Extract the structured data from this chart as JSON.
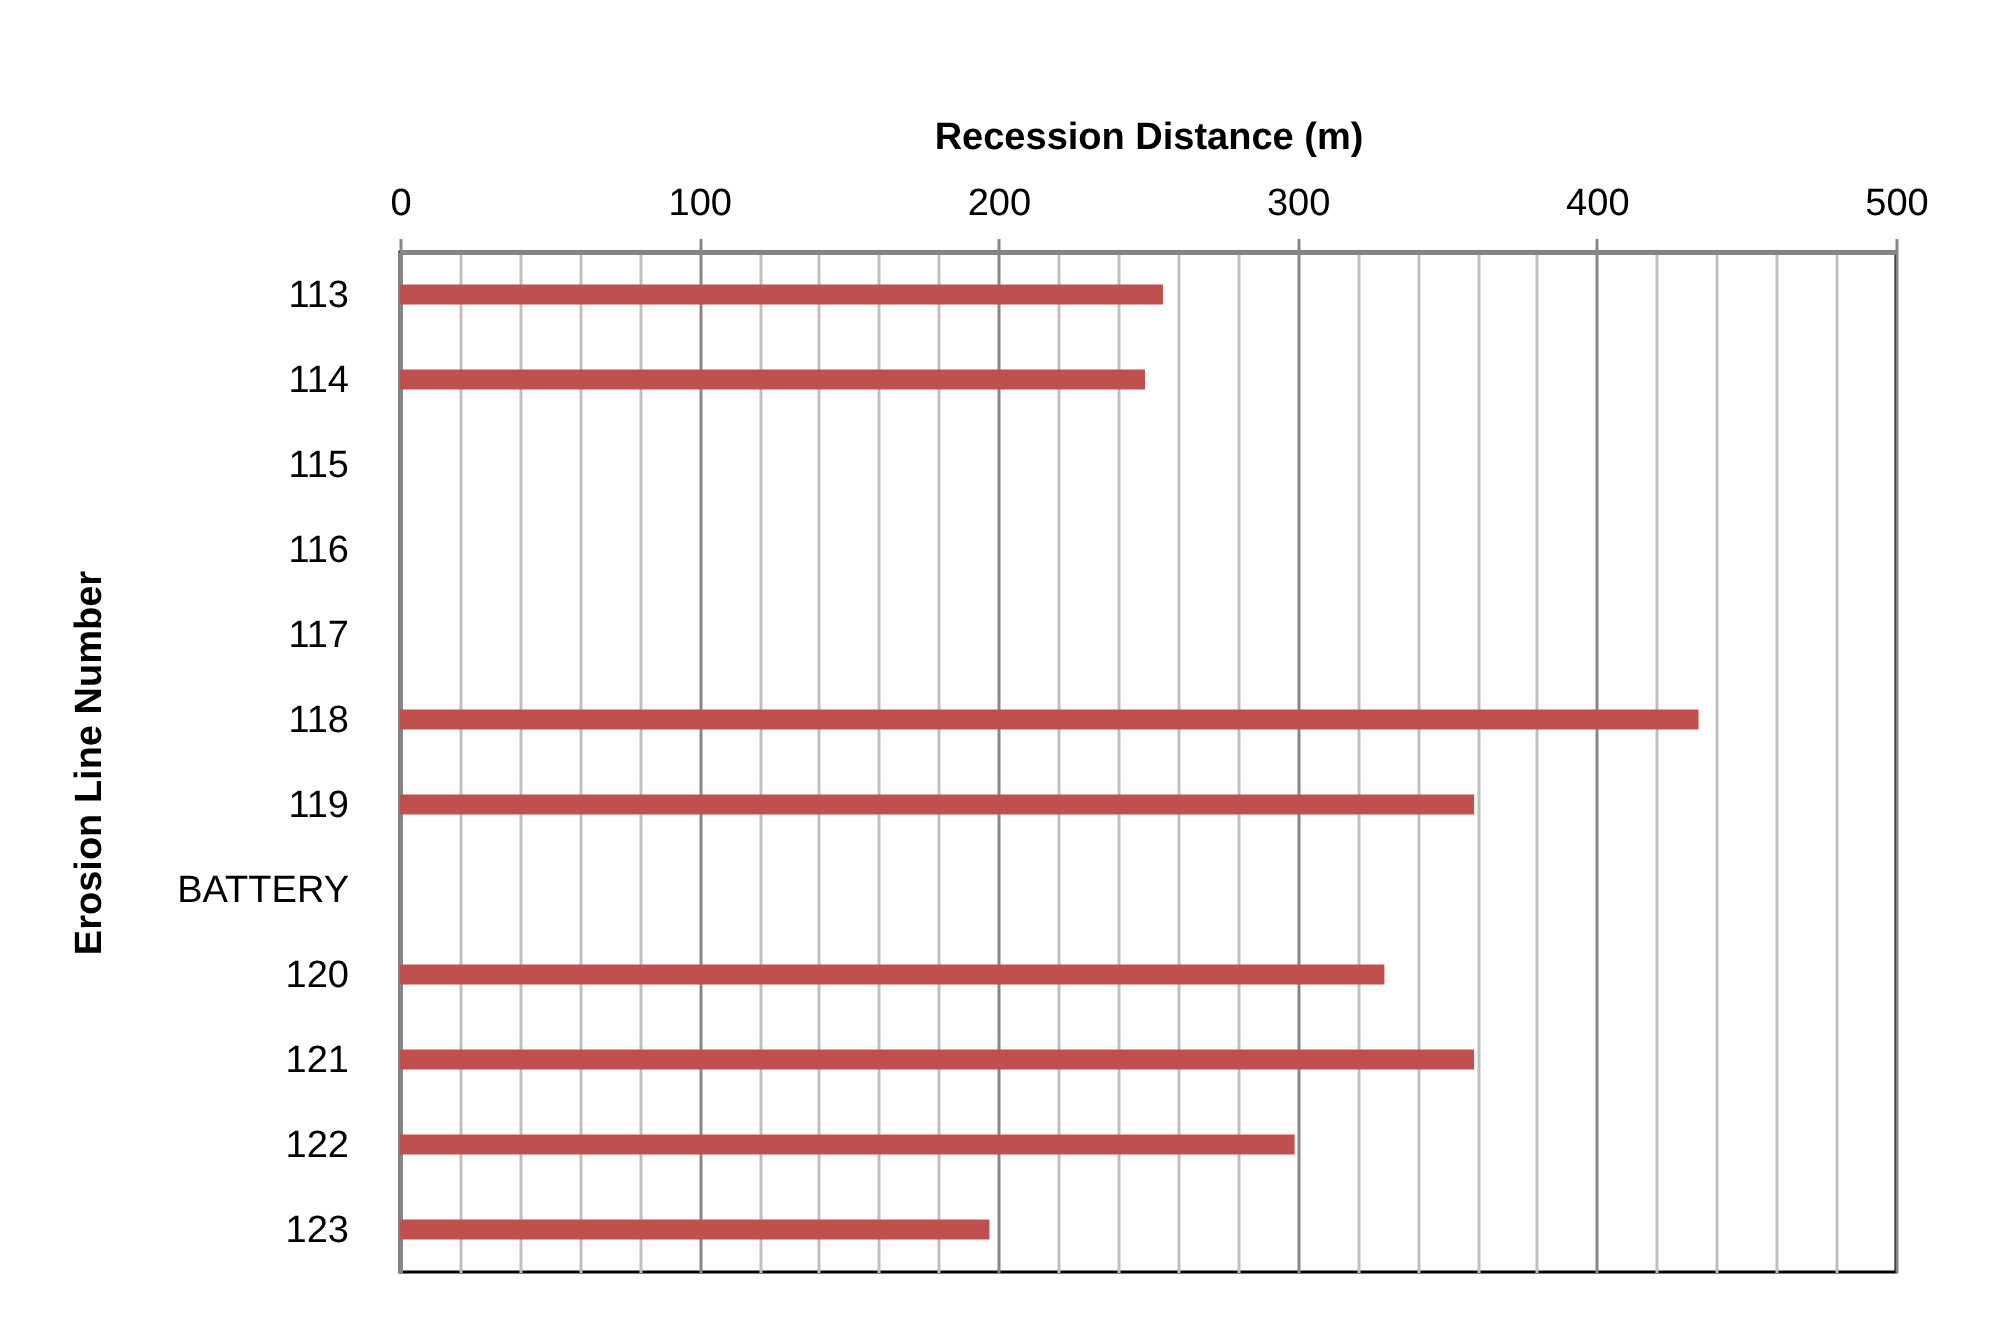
{
  "chart_data": {
    "type": "bar",
    "orientation": "horizontal",
    "xlabel": "Recession Distance (m)",
    "ylabel": "Erosion Line Number",
    "categories": [
      "113",
      "114",
      "115",
      "116",
      "117",
      "118",
      "119",
      "BATTERY",
      "120",
      "121",
      "122",
      "123"
    ],
    "values": [
      255,
      249,
      null,
      null,
      null,
      434,
      359,
      null,
      329,
      359,
      299,
      197
    ],
    "color": "#c0504d",
    "xlim": [
      0,
      500
    ],
    "xticks": [
      0,
      {
        "value": 20,
        "label": null
      },
      {
        "value": 40,
        "label": null
      },
      {
        "value": 60,
        "label": null
      },
      {
        "value": 80,
        "label": null
      },
      100,
      {
        "value": 120,
        "label": null
      },
      {
        "value": 140,
        "label": null
      },
      {
        "value": 160,
        "label": null
      },
      {
        "value": 180,
        "label": null
      },
      200,
      {
        "value": 220,
        "label": null
      },
      {
        "value": 240,
        "label": null
      },
      {
        "value": 260,
        "label": null
      },
      {
        "value": 280,
        "label": null
      },
      300,
      {
        "value": 320,
        "label": null
      },
      {
        "value": 340,
        "label": null
      },
      {
        "value": 360,
        "label": null
      },
      {
        "value": 380,
        "label": null
      },
      400,
      {
        "value": 420,
        "label": null
      },
      {
        "value": 440,
        "label": null
      },
      {
        "value": 460,
        "label": null
      },
      {
        "value": 480,
        "label": null
      },
      500
    ],
    "grid": "x"
  }
}
